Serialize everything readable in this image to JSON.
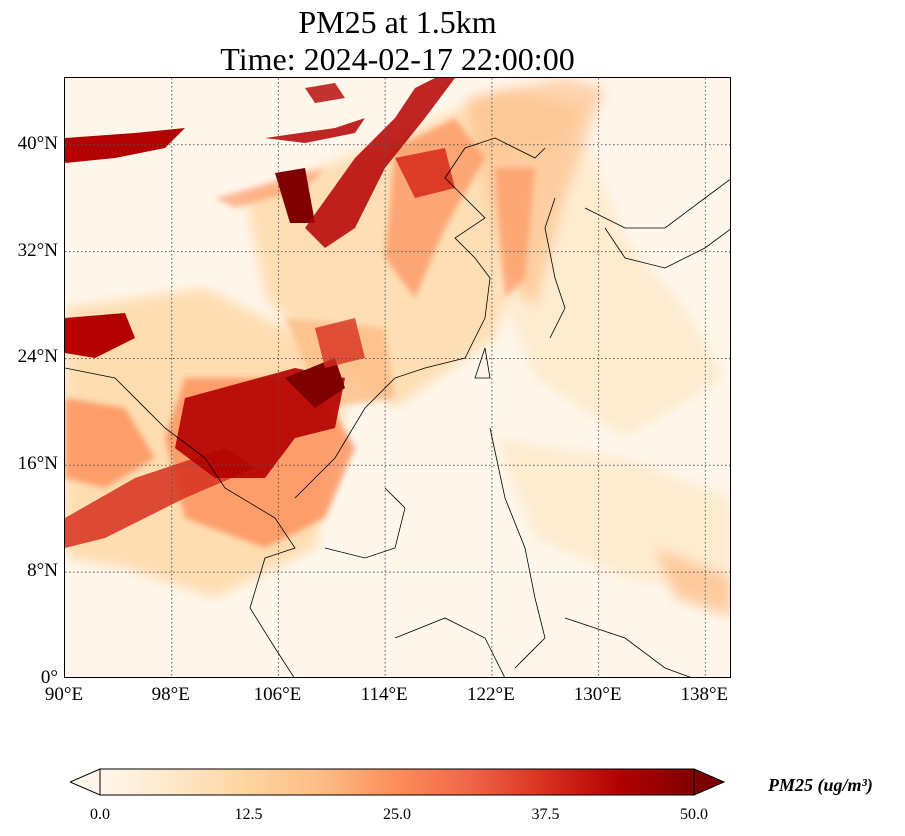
{
  "title": {
    "line1": "PM25 at 1.5km",
    "line2": "Time: 2024-02-17 22:00:00"
  },
  "map": {
    "extent_lon": [
      90,
      140
    ],
    "extent_lat": [
      0,
      45
    ],
    "lat_ticks": [
      {
        "value": 40,
        "label": "40°N"
      },
      {
        "value": 32,
        "label": "32°N"
      },
      {
        "value": 24,
        "label": "24°N"
      },
      {
        "value": 16,
        "label": "16°N"
      },
      {
        "value": 8,
        "label": "8°N"
      },
      {
        "value": 0,
        "label": "0°"
      }
    ],
    "lon_ticks": [
      {
        "value": 90,
        "label": "90°E"
      },
      {
        "value": 98,
        "label": "98°E"
      },
      {
        "value": 106,
        "label": "106°E"
      },
      {
        "value": 114,
        "label": "114°E"
      },
      {
        "value": 122,
        "label": "122°E"
      },
      {
        "value": 130,
        "label": "130°E"
      },
      {
        "value": 138,
        "label": "138°E"
      }
    ],
    "gridlines": "dotted"
  },
  "colorbar": {
    "label": "PM25 (ug/m³)",
    "range": [
      0,
      50
    ],
    "colormap": "OrRd",
    "extend": "both",
    "ticks": [
      {
        "value": 0,
        "label": "0.0"
      },
      {
        "value": 12.5,
        "label": "12.5"
      },
      {
        "value": 25,
        "label": "25.0"
      },
      {
        "value": 37.5,
        "label": "37.5"
      },
      {
        "value": 50,
        "label": "50.0"
      }
    ],
    "colors": [
      "#fff7ec",
      "#fee8c8",
      "#fdd49e",
      "#fdbb84",
      "#fc8d59",
      "#ef6548",
      "#d7301f",
      "#b30000",
      "#7f0000"
    ]
  }
}
